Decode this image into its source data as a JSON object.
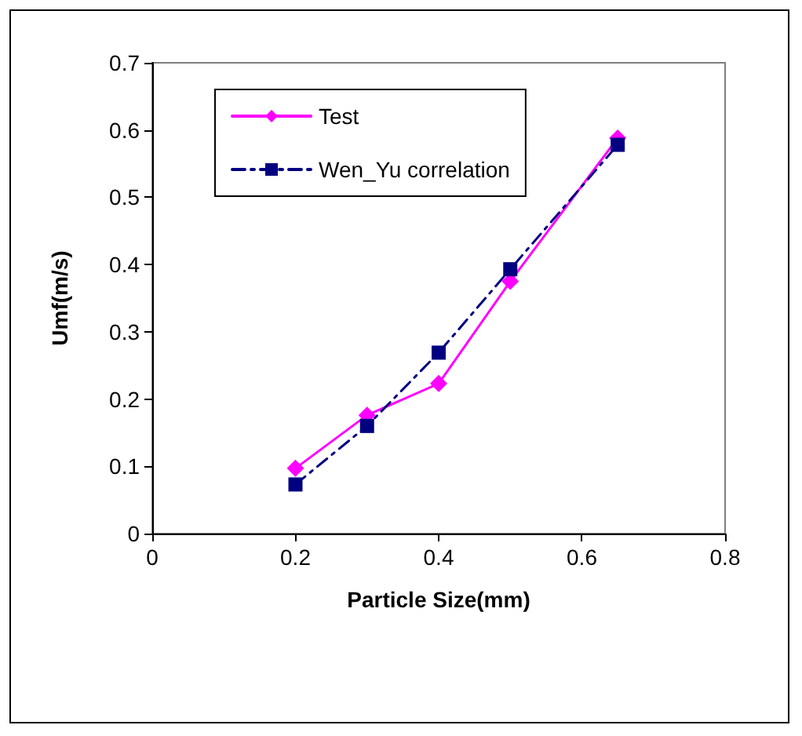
{
  "chart_data": {
    "type": "line",
    "xlabel": "Particle Size(mm)",
    "ylabel": "Umf(m/s)",
    "xlim": [
      0,
      0.8
    ],
    "xticks": [
      0,
      0.2,
      0.4,
      0.6,
      0.8
    ],
    "ylim": [
      0,
      0.7
    ],
    "yticks": [
      0,
      0.1,
      0.2,
      0.3,
      0.4,
      0.5,
      0.6,
      0.7
    ],
    "grid": false,
    "legend": "top left",
    "x": [
      0.2,
      0.3,
      0.4,
      0.5,
      0.65
    ],
    "series": [
      {
        "name": "Test",
        "color": "#ff00ff",
        "marker": "diamond",
        "line_style": "solid",
        "values": [
          0.097,
          0.176,
          0.223,
          0.375,
          0.588
        ]
      },
      {
        "name": "Wen_Yu correlation",
        "color": "#000080",
        "marker": "square",
        "line_style": "dashed",
        "values": [
          0.073,
          0.16,
          0.269,
          0.393,
          0.578
        ]
      }
    ]
  }
}
